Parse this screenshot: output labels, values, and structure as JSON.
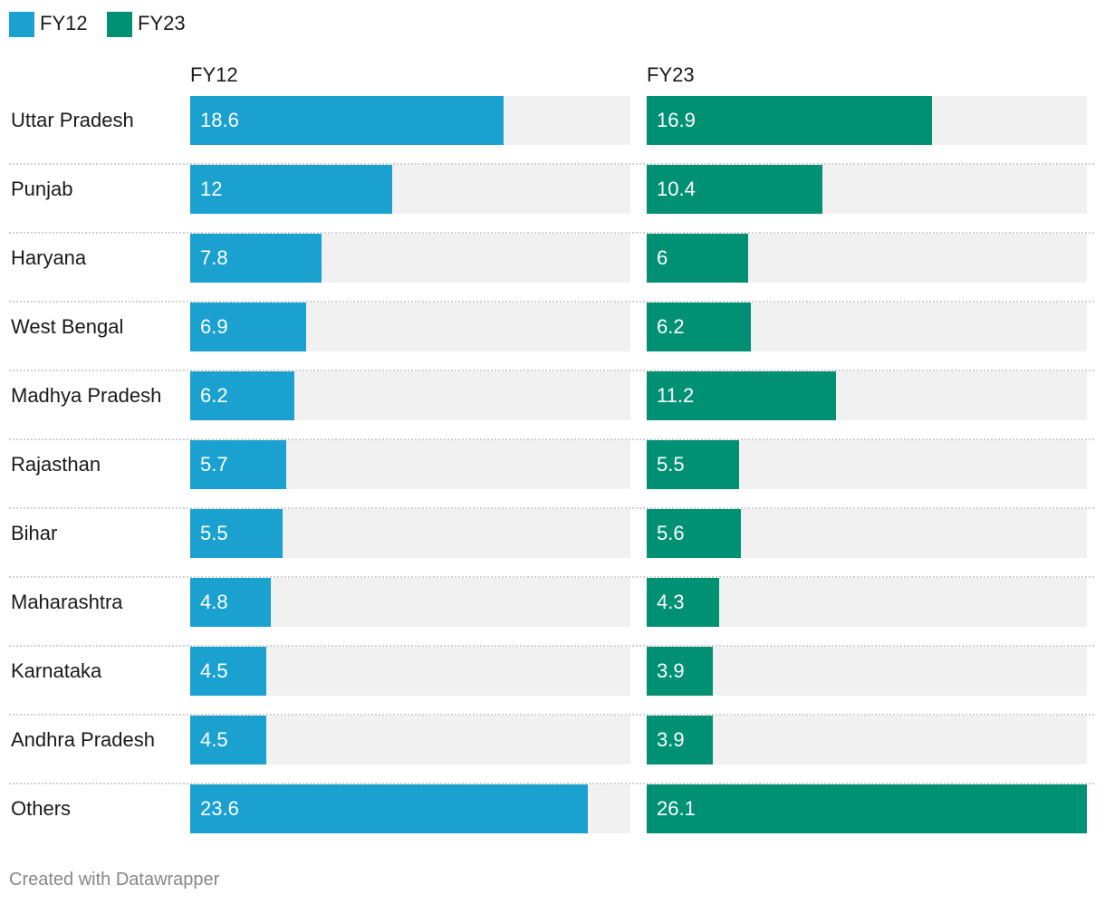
{
  "chart_data": {
    "type": "bar",
    "layout": "split-bars",
    "title": "",
    "xlabel": "",
    "ylabel": "",
    "xlim": [
      0,
      26.1
    ],
    "categories": [
      "Uttar Pradesh",
      "Punjab",
      "Haryana",
      "West Bengal",
      "Madhya Pradesh",
      "Rajasthan",
      "Bihar",
      "Maharashtra",
      "Karnataka",
      "Andhra Pradesh",
      "Others"
    ],
    "series": [
      {
        "name": "FY12",
        "color": "#1aa1d0",
        "values": [
          18.6,
          12,
          7.8,
          6.9,
          6.2,
          5.7,
          5.5,
          4.8,
          4.5,
          4.5,
          23.6
        ],
        "labels": [
          "18.6",
          "12",
          "7.8",
          "6.9",
          "6.2",
          "5.7",
          "5.5",
          "4.8",
          "4.5",
          "4.5",
          "23.6"
        ]
      },
      {
        "name": "FY23",
        "color": "#009175",
        "values": [
          16.9,
          10.4,
          6,
          6.2,
          11.2,
          5.5,
          5.6,
          4.3,
          3.9,
          3.9,
          26.1
        ],
        "labels": [
          "16.9",
          "10.4",
          "6",
          "6.2",
          "11.2",
          "5.5",
          "5.6",
          "4.3",
          "3.9",
          "3.9",
          "26.1"
        ]
      }
    ],
    "legend": {
      "position": "top-left"
    },
    "grid": false
  },
  "footer": {
    "credit": "Created with Datawrapper"
  }
}
